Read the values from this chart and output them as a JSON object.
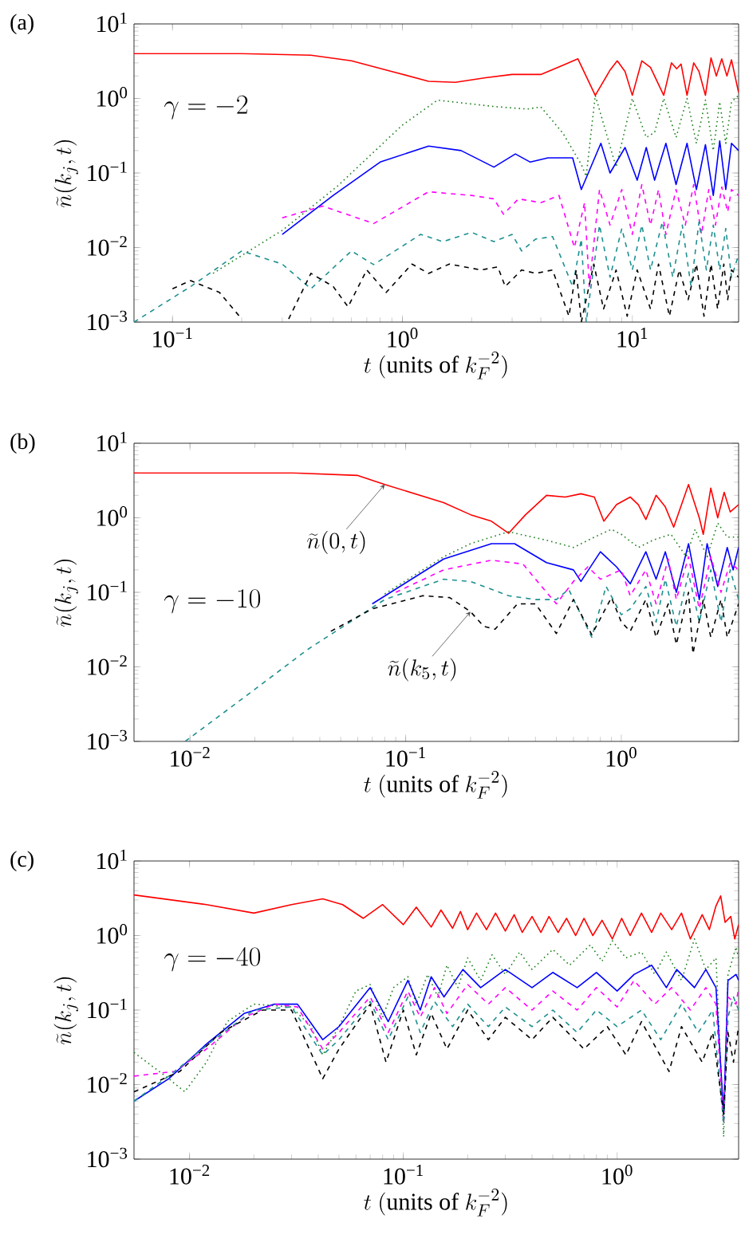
{
  "chart_data": [
    {
      "type": "line",
      "title": "(a)",
      "xlabel": "t\\ (\\mathrm{units\\ of}\\ k_F^{-2})",
      "ylabel": "\\widetilde{n}(k_j,t)",
      "log": "xy",
      "xlim": [
        0.068,
        29
      ],
      "ylim": [
        0.001,
        10
      ],
      "xticks": [
        {
          "value": 0.1,
          "label": "10$^{−1}$"
        },
        {
          "value": 1,
          "label": "10$^{0}$"
        },
        {
          "value": 10,
          "label": "10$^{1}$"
        }
      ],
      "yticks": [
        {
          "value": 0.001,
          "label": "10$^{−3}$"
        },
        {
          "value": 0.01,
          "label": "10$^{−2}$"
        },
        {
          "value": 0.1,
          "label": "10$^{−1}$"
        },
        {
          "value": 1,
          "label": "10$^{0}$"
        },
        {
          "value": 10,
          "label": "10$^{1}$"
        }
      ],
      "annotations": [
        "\\gamma = -2"
      ],
      "series": [
        {
          "color": "#ff0000",
          "line_style": "solid",
          "x": [
            0.068,
            0.2,
            0.4,
            0.6,
            0.9,
            1.3,
            1.7,
            2.3,
            3.0,
            4.0,
            5.0,
            5.8,
            6.9,
            8.0,
            8.6,
            9.3,
            10.0,
            11,
            12,
            13.7,
            14.8,
            15.6,
            16.3,
            17.3,
            18.5,
            19.5,
            20.8,
            22,
            23.2,
            24.5,
            25.8,
            27,
            29
          ],
          "values": [
            4.0,
            4.0,
            3.8,
            3.2,
            2.3,
            1.7,
            1.65,
            1.9,
            2.1,
            2.1,
            2.8,
            3.4,
            1.1,
            2.4,
            3.2,
            2.3,
            1.1,
            3.2,
            2.6,
            1.1,
            3.0,
            2.5,
            2.9,
            1.1,
            3.0,
            2.3,
            1.1,
            3.5,
            2.0,
            3.4,
            2.0,
            3.3,
            1.2
          ]
        },
        {
          "color": "#1a7f1a",
          "line_style": "dotted",
          "x": [
            0.15,
            0.3,
            0.52,
            1.0,
            1.42,
            2.5,
            3.5,
            4.0,
            5.0,
            6.0,
            6.3,
            6.9,
            8.5,
            10,
            11.5,
            12.5,
            13.7,
            15.5,
            17.3,
            19,
            20.8,
            22.5,
            24,
            25.5,
            27,
            29
          ],
          "values": [
            0.0045,
            0.017,
            0.066,
            0.44,
            0.95,
            0.78,
            0.72,
            0.77,
            0.34,
            0.13,
            0.09,
            1.1,
            0.12,
            1.0,
            0.3,
            0.35,
            1.0,
            0.3,
            1.0,
            0.25,
            0.95,
            0.2,
            0.9,
            0.25,
            0.9,
            1.1
          ]
        },
        {
          "color": "#0000ff",
          "line_style": "solid",
          "x": [
            0.3,
            0.5,
            0.8,
            1.3,
            1.8,
            2.5,
            3.1,
            3.6,
            4.3,
            5.5,
            6.0,
            7.3,
            8,
            9.3,
            10.5,
            11.5,
            12.5,
            14,
            15.5,
            17.3,
            19,
            20.8,
            22.5,
            24,
            25.5,
            27,
            29
          ],
          "values": [
            0.015,
            0.05,
            0.14,
            0.23,
            0.2,
            0.12,
            0.18,
            0.14,
            0.16,
            0.16,
            0.06,
            0.25,
            0.1,
            0.22,
            0.08,
            0.22,
            0.08,
            0.25,
            0.07,
            0.25,
            0.06,
            0.24,
            0.05,
            0.27,
            0.06,
            0.25,
            0.2
          ]
        },
        {
          "color": "#ff00ff",
          "line_style": "dashed",
          "x": [
            0.3,
            0.45,
            0.75,
            1.3,
            2.0,
            2.5,
            2.75,
            3.2,
            4,
            4.8,
            5.6,
            6.2,
            6.5,
            7.2,
            8,
            9,
            10,
            11,
            12,
            13,
            14,
            15.5,
            17,
            18.5,
            20,
            21.5,
            23,
            24.5,
            26,
            27,
            29
          ],
          "values": [
            0.025,
            0.036,
            0.021,
            0.056,
            0.05,
            0.045,
            0.028,
            0.045,
            0.04,
            0.05,
            0.01,
            0.04,
            0.003,
            0.06,
            0.02,
            0.06,
            0.015,
            0.07,
            0.02,
            0.06,
            0.015,
            0.06,
            0.02,
            0.07,
            0.015,
            0.06,
            0.02,
            0.065,
            0.03,
            0.06,
            0.05
          ]
        },
        {
          "color": "#1e9090",
          "line_style": "dashed",
          "x": [
            0.068,
            0.12,
            0.2,
            0.3,
            0.4,
            0.6,
            0.75,
            1.2,
            1.5,
            2.0,
            2.5,
            3.0,
            3.3,
            3.8,
            4.5,
            5.5,
            6,
            6.3,
            7.2,
            8,
            9,
            10,
            11,
            12,
            13.5,
            15,
            16.5,
            18,
            19.5,
            21,
            22.5,
            24,
            25.5,
            27,
            29
          ],
          "values": [
            0.001,
            0.003,
            0.009,
            0.006,
            0.0028,
            0.009,
            0.0059,
            0.015,
            0.012,
            0.016,
            0.012,
            0.015,
            0.009,
            0.013,
            0.014,
            0.003,
            0.013,
            0.001,
            0.02,
            0.004,
            0.018,
            0.005,
            0.02,
            0.005,
            0.022,
            0.004,
            0.02,
            0.003,
            0.022,
            0.005,
            0.02,
            0.005,
            0.018,
            0.004,
            0.008
          ]
        },
        {
          "color": "#000000",
          "line_style": "dashed",
          "x": [
            0.1,
            0.12,
            0.16,
            0.2,
            0.25,
            0.32,
            0.4,
            0.5,
            0.58,
            0.7,
            0.85,
            1.1,
            1.3,
            1.6,
            2.2,
            2.6,
            2.8,
            3.3,
            3.8,
            4.5,
            5.3,
            5.7,
            6.0,
            6.8,
            7.5,
            8.5,
            9.5,
            10.5,
            12,
            13,
            14.5,
            16,
            17.5,
            19,
            20.5,
            22,
            23.5,
            25,
            26,
            27,
            29
          ],
          "values": [
            0.0028,
            0.0036,
            0.0025,
            0.0011,
            null,
            0.0011,
            0.0045,
            0.003,
            0.0016,
            0.005,
            0.0025,
            0.006,
            0.0045,
            0.006,
            0.005,
            0.0055,
            0.003,
            0.005,
            0.0045,
            0.005,
            0.0012,
            0.005,
            0.001,
            0.006,
            0.0015,
            0.005,
            0.0012,
            0.005,
            0.0015,
            0.006,
            0.0012,
            0.005,
            0.002,
            0.006,
            0.0012,
            0.006,
            0.0015,
            0.006,
            0.002,
            0.005,
            0.004
          ]
        }
      ]
    },
    {
      "type": "line",
      "title": "(b)",
      "xlabel": "t\\ (\\mathrm{units\\ of}\\ k_F^{-2})",
      "ylabel": "\\widetilde{n}(k_j,t)",
      "log": "xy",
      "xlim": [
        0.0055,
        3.5
      ],
      "ylim": [
        0.001,
        10
      ],
      "xticks": [
        {
          "value": 0.01,
          "label": "10$^{−2}$"
        },
        {
          "value": 0.1,
          "label": "10$^{−1}$"
        },
        {
          "value": 1,
          "label": "10$^{0}$"
        }
      ],
      "yticks": [
        {
          "value": 0.001,
          "label": "10$^{−3}$"
        },
        {
          "value": 0.01,
          "label": "10$^{−2}$"
        },
        {
          "value": 0.1,
          "label": "10$^{−1}$"
        },
        {
          "value": 1,
          "label": "10$^{0}$"
        },
        {
          "value": 10,
          "label": "10$^{1}$"
        }
      ],
      "annotations": [
        "\\gamma = -10",
        {
          "text": "\\widetilde{n}(0,t)",
          "x": 0.08,
          "y": 2.8
        },
        {
          "text": "\\widetilde{n}(k_5,t)",
          "x": 0.2,
          "y": 0.055
        }
      ],
      "series": [
        {
          "color": "#ff0000",
          "line_style": "solid",
          "x": [
            0.0055,
            0.03,
            0.06,
            0.08,
            0.15,
            0.2,
            0.25,
            0.3,
            0.36,
            0.45,
            0.55,
            0.65,
            0.75,
            0.83,
            0.95,
            1.1,
            1.2,
            1.3,
            1.45,
            1.6,
            1.75,
            2.05,
            2.3,
            2.4,
            2.6,
            2.8,
            3.0,
            3.2,
            3.5
          ],
          "values": [
            4.0,
            4.0,
            3.7,
            2.8,
            1.6,
            1.1,
            0.9,
            0.62,
            1.1,
            2.0,
            1.9,
            2.1,
            1.9,
            0.9,
            1.5,
            1.9,
            1.5,
            0.95,
            2.0,
            1.4,
            0.75,
            2.8,
            1.0,
            0.6,
            2.5,
            1.0,
            2.2,
            1.2,
            1.5
          ]
        },
        {
          "color": "#1a7f1a",
          "line_style": "dotted",
          "x": [
            0.08,
            0.15,
            0.2,
            0.3,
            0.45,
            0.6,
            0.75,
            0.9,
            1.0,
            1.2,
            1.4,
            1.7,
            2.0,
            2.2,
            2.5,
            2.8,
            3.1,
            3.5
          ],
          "values": [
            0.095,
            0.3,
            0.45,
            0.65,
            0.5,
            0.4,
            0.55,
            0.7,
            0.6,
            0.4,
            0.5,
            0.6,
            0.3,
            0.7,
            0.3,
            0.85,
            0.55,
            0.55
          ]
        },
        {
          "color": "#0000ff",
          "line_style": "solid",
          "x": [
            0.07,
            0.15,
            0.25,
            0.32,
            0.45,
            0.6,
            0.65,
            0.8,
            0.95,
            1.1,
            1.3,
            1.45,
            1.6,
            1.8,
            2.05,
            2.3,
            2.5,
            2.8,
            3.1,
            3.3,
            3.5
          ],
          "values": [
            0.07,
            0.28,
            0.45,
            0.45,
            0.25,
            0.2,
            0.14,
            0.35,
            0.22,
            0.13,
            0.35,
            0.15,
            0.35,
            0.1,
            0.45,
            0.08,
            0.45,
            0.12,
            0.4,
            0.2,
            0.4
          ]
        },
        {
          "color": "#ff00ff",
          "line_style": "dashed",
          "x": [
            0.09,
            0.15,
            0.25,
            0.35,
            0.45,
            0.5,
            0.6,
            0.7,
            0.8,
            1.0,
            1.1,
            1.3,
            1.45,
            1.65,
            1.8,
            2.05,
            2.3,
            2.6,
            2.9,
            3.2,
            3.5
          ],
          "values": [
            0.1,
            0.2,
            0.27,
            0.24,
            0.1,
            0.07,
            0.14,
            0.22,
            0.15,
            0.2,
            0.09,
            0.2,
            0.07,
            0.28,
            0.08,
            0.3,
            0.06,
            0.3,
            0.1,
            0.25,
            0.2
          ]
        },
        {
          "color": "#1e9090",
          "line_style": "dashed",
          "x": [
            0.0095,
            0.02,
            0.035,
            0.08,
            0.15,
            0.2,
            0.3,
            0.4,
            0.5,
            0.57,
            0.65,
            0.73,
            0.85,
            1.0,
            1.1,
            1.3,
            1.45,
            1.6,
            1.8,
            2.05,
            2.3,
            2.6,
            2.9,
            3.2,
            3.5
          ],
          "values": [
            0.001,
            0.005,
            0.017,
            0.08,
            0.15,
            0.14,
            0.09,
            0.08,
            0.08,
            0.11,
            0.05,
            0.025,
            0.12,
            0.05,
            0.06,
            0.12,
            0.04,
            0.15,
            0.035,
            0.18,
            0.04,
            0.2,
            0.04,
            0.2,
            0.08
          ]
        },
        {
          "color": "#000000",
          "line_style": "dashed",
          "x": [
            0.045,
            0.07,
            0.12,
            0.16,
            0.2,
            0.23,
            0.26,
            0.33,
            0.4,
            0.5,
            0.6,
            0.73,
            0.9,
            1.0,
            1.1,
            1.3,
            1.45,
            1.65,
            1.8,
            2.05,
            2.15,
            2.4,
            2.6,
            2.9,
            3.1,
            3.5
          ],
          "values": [
            0.03,
            0.06,
            0.09,
            0.085,
            0.055,
            0.035,
            0.032,
            0.07,
            0.07,
            0.028,
            0.08,
            0.027,
            0.085,
            0.04,
            0.03,
            0.08,
            0.025,
            0.07,
            0.02,
            0.1,
            0.015,
            0.08,
            0.025,
            0.08,
            0.025,
            0.07
          ]
        }
      ]
    },
    {
      "type": "line",
      "title": "(c)",
      "xlabel": "t\\ (\\mathrm{units\\ of}\\ k_F^{-2})",
      "ylabel": "\\widetilde{n}(k_j,t)",
      "log": "xy",
      "xlim": [
        0.0055,
        3.7
      ],
      "ylim": [
        0.001,
        10
      ],
      "xticks": [
        {
          "value": 0.01,
          "label": "10$^{−2}$"
        },
        {
          "value": 0.1,
          "label": "10$^{−1}$"
        },
        {
          "value": 1,
          "label": "10$^{0}$"
        }
      ],
      "yticks": [
        {
          "value": 0.001,
          "label": "10$^{−3}$"
        },
        {
          "value": 0.01,
          "label": "10$^{−2}$"
        },
        {
          "value": 0.1,
          "label": "10$^{−1}$"
        },
        {
          "value": 1,
          "label": "10$^{0}$"
        },
        {
          "value": 10,
          "label": "10$^{1}$"
        }
      ],
      "annotations": [
        "\\gamma = -40"
      ],
      "series": [
        {
          "color": "#ff0000",
          "line_style": "solid",
          "x": [
            0.0055,
            0.012,
            0.02,
            0.03,
            0.042,
            0.052,
            0.065,
            0.08,
            0.1,
            0.115,
            0.135,
            0.15,
            0.17,
            0.185,
            0.2,
            0.22,
            0.245,
            0.27,
            0.3,
            0.33,
            0.36,
            0.4,
            0.44,
            0.48,
            0.53,
            0.58,
            0.64,
            0.7,
            0.77,
            0.85,
            0.95,
            1.05,
            1.15,
            1.3,
            1.45,
            1.6,
            1.8,
            2.0,
            2.2,
            2.5,
            2.7,
            2.9,
            3.05,
            3.2,
            3.4,
            3.55,
            3.7
          ],
          "values": [
            3.5,
            2.6,
            2.0,
            2.6,
            3.1,
            2.6,
            1.7,
            2.6,
            1.4,
            2.4,
            1.3,
            2.2,
            1.25,
            2.1,
            1.2,
            2.0,
            1.2,
            2.0,
            1.15,
            1.9,
            1.1,
            1.8,
            1.1,
            1.8,
            1.1,
            1.7,
            1.0,
            1.7,
            1.0,
            1.6,
            0.9,
            1.7,
            1.0,
            2.0,
            1.1,
            2.0,
            1.2,
            2.0,
            0.9,
            1.9,
            1.2,
            2.5,
            3.4,
            1.5,
            1.8,
            0.9,
            1.4
          ]
        },
        {
          "color": "#1a7f1a",
          "line_style": "dotted",
          "x": [
            0.0055,
            0.008,
            0.0095,
            0.012,
            0.015,
            0.02,
            0.03,
            0.037,
            0.042,
            0.05,
            0.06,
            0.07,
            0.08,
            0.09,
            0.105,
            0.115,
            0.13,
            0.145,
            0.16,
            0.18,
            0.2,
            0.23,
            0.26,
            0.3,
            0.35,
            0.4,
            0.5,
            0.6,
            0.75,
            0.85,
            0.95,
            1.1,
            1.3,
            1.5,
            1.7,
            2.0,
            2.3,
            2.6,
            2.9,
            3.15,
            3.3,
            3.6,
            3.7
          ],
          "values": [
            0.027,
            0.012,
            0.008,
            0.02,
            0.07,
            0.12,
            0.11,
            0.06,
            0.025,
            0.06,
            0.18,
            0.22,
            0.08,
            0.2,
            0.28,
            0.12,
            0.3,
            0.15,
            0.4,
            0.2,
            0.5,
            0.25,
            0.55,
            0.3,
            0.6,
            0.35,
            0.65,
            0.4,
            0.75,
            0.45,
            0.85,
            0.5,
            0.6,
            0.3,
            0.6,
            0.25,
            0.9,
            0.35,
            0.5,
            0.002,
            0.3,
            0.7,
            0.5
          ]
        },
        {
          "color": "#0000ff",
          "line_style": "solid",
          "x": [
            0.0055,
            0.008,
            0.012,
            0.018,
            0.025,
            0.032,
            0.042,
            0.05,
            0.07,
            0.085,
            0.105,
            0.12,
            0.135,
            0.155,
            0.19,
            0.23,
            0.3,
            0.4,
            0.5,
            0.65,
            0.8,
            1.0,
            1.2,
            1.45,
            1.7,
            1.9,
            2.3,
            2.6,
            2.9,
            3.15,
            3.3,
            3.6,
            3.7
          ],
          "values": [
            0.006,
            0.012,
            0.035,
            0.09,
            0.12,
            0.12,
            0.04,
            0.06,
            0.2,
            0.07,
            0.25,
            0.1,
            0.28,
            0.15,
            0.35,
            0.2,
            0.35,
            0.2,
            0.32,
            0.2,
            0.32,
            0.18,
            0.3,
            0.4,
            0.2,
            0.35,
            0.2,
            0.35,
            0.2,
            0.004,
            0.25,
            0.3,
            0.25
          ]
        },
        {
          "color": "#ff00ff",
          "line_style": "dashed",
          "x": [
            0.0055,
            0.0085,
            0.012,
            0.018,
            0.025,
            0.032,
            0.042,
            0.05,
            0.07,
            0.085,
            0.105,
            0.12,
            0.14,
            0.16,
            0.2,
            0.25,
            0.3,
            0.4,
            0.5,
            0.65,
            0.8,
            1.0,
            1.2,
            1.5,
            1.8,
            2.2,
            2.6,
            2.9,
            3.15,
            3.3,
            3.6,
            3.7
          ],
          "values": [
            0.013,
            0.015,
            0.03,
            0.08,
            0.12,
            0.11,
            0.03,
            0.05,
            0.15,
            0.05,
            0.18,
            0.08,
            0.2,
            0.09,
            0.22,
            0.12,
            0.2,
            0.1,
            0.18,
            0.1,
            0.2,
            0.11,
            0.25,
            0.12,
            0.2,
            0.1,
            0.2,
            0.12,
            0.003,
            0.15,
            0.12,
            0.2
          ]
        },
        {
          "color": "#1e9090",
          "line_style": "dashed",
          "x": [
            0.0055,
            0.008,
            0.013,
            0.02,
            0.03,
            0.042,
            0.05,
            0.07,
            0.085,
            0.105,
            0.12,
            0.14,
            0.17,
            0.2,
            0.25,
            0.3,
            0.4,
            0.5,
            0.65,
            0.8,
            1.0,
            1.3,
            1.6,
            2.0,
            2.4,
            2.8,
            3.15,
            3.3,
            3.5,
            3.7
          ],
          "values": [
            0.006,
            0.013,
            0.04,
            0.1,
            0.11,
            0.025,
            0.04,
            0.13,
            0.04,
            0.15,
            0.05,
            0.13,
            0.06,
            0.12,
            0.06,
            0.11,
            0.06,
            0.1,
            0.05,
            0.1,
            0.06,
            0.1,
            0.04,
            0.12,
            0.05,
            0.1,
            0.003,
            0.08,
            0.15,
            0.1
          ]
        },
        {
          "color": "#000000",
          "line_style": "dashed",
          "x": [
            0.0055,
            0.009,
            0.014,
            0.022,
            0.03,
            0.042,
            0.05,
            0.07,
            0.083,
            0.1,
            0.115,
            0.135,
            0.16,
            0.2,
            0.25,
            0.3,
            0.4,
            0.5,
            0.7,
            0.9,
            1.1,
            1.3,
            1.75,
            2.0,
            2.5,
            2.8,
            3.15,
            3.3,
            3.5,
            3.7
          ],
          "values": [
            0.008,
            0.015,
            0.05,
            0.1,
            0.1,
            0.012,
            0.03,
            0.12,
            0.02,
            0.1,
            0.025,
            0.09,
            0.03,
            0.1,
            0.04,
            0.08,
            0.04,
            0.08,
            0.03,
            0.06,
            0.025,
            0.07,
            0.015,
            0.06,
            0.02,
            0.05,
            0.004,
            0.05,
            0.02,
            0.06
          ]
        }
      ]
    }
  ]
}
